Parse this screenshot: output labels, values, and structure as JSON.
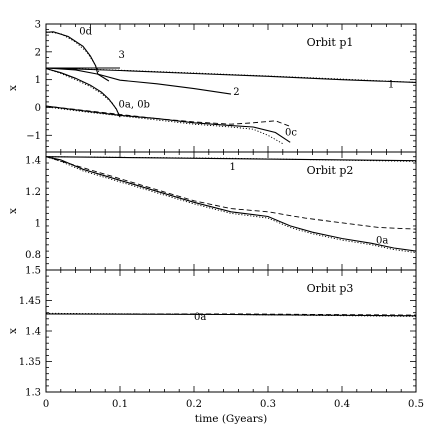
{
  "chart_data": {
    "type": "line",
    "xlabel": "time (Gyears)",
    "x_ticks": [
      "0",
      "0.1",
      "0.2",
      "0.3",
      "0.4",
      "0.5"
    ],
    "xlim": [
      0,
      0.5
    ],
    "panels": [
      {
        "title": "Orbit p1",
        "ylabel": "x",
        "ylim": [
          -1.6,
          3
        ],
        "y_ticks": [
          "−1",
          "0",
          "1",
          "2",
          "3"
        ],
        "y_tick_values": [
          -1,
          0,
          1,
          2,
          3
        ],
        "annotations": [
          {
            "text": "0d",
            "x": 0.045,
            "y": 2.62
          },
          {
            "text": "3",
            "x": 0.098,
            "y": 1.78
          },
          {
            "text": "2",
            "x": 0.253,
            "y": 0.45
          },
          {
            "text": "1",
            "x": 0.462,
            "y": 0.72
          },
          {
            "text": "0a, 0b",
            "x": 0.098,
            "y": 0.0
          },
          {
            "text": "0c",
            "x": 0.323,
            "y": -1.0
          }
        ],
        "series": [
          {
            "style": "solid",
            "points": [
              [
                0,
                1.42
              ],
              [
                0.1,
                1.33
              ],
              [
                0.2,
                1.22
              ],
              [
                0.3,
                1.12
              ],
              [
                0.4,
                1.0
              ],
              [
                0.5,
                0.9
              ]
            ]
          },
          {
            "style": "dotted",
            "points": [
              [
                0,
                1.42
              ],
              [
                0.1,
                1.34
              ],
              [
                0.2,
                1.24
              ],
              [
                0.3,
                1.13
              ],
              [
                0.4,
                1.02
              ],
              [
                0.5,
                0.9
              ]
            ]
          },
          {
            "style": "solid",
            "points": [
              [
                0,
                1.42
              ],
              [
                0.04,
                1.35
              ],
              [
                0.07,
                1.2
              ],
              [
                0.1,
                0.98
              ],
              [
                0.15,
                0.85
              ],
              [
                0.2,
                0.68
              ],
              [
                0.25,
                0.48
              ]
            ]
          },
          {
            "style": "solid",
            "points": [
              [
                0,
                1.42
              ],
              [
                0.1,
                1.42
              ]
            ]
          },
          {
            "style": "solid",
            "points": [
              [
                0,
                2.7
              ],
              [
                0.01,
                2.72
              ],
              [
                0.03,
                2.55
              ],
              [
                0.05,
                2.2
              ],
              [
                0.06,
                1.85
              ],
              [
                0.067,
                1.5
              ],
              [
                0.07,
                1.2
              ],
              [
                0.085,
                0.95
              ]
            ]
          },
          {
            "style": "dotted",
            "points": [
              [
                0,
                2.72
              ],
              [
                0.02,
                2.65
              ],
              [
                0.04,
                2.35
              ],
              [
                0.055,
                2.0
              ],
              [
                0.065,
                1.6
              ],
              [
                0.072,
                1.25
              ]
            ]
          },
          {
            "style": "solid",
            "points": [
              [
                0,
                1.4
              ],
              [
                0.02,
                1.25
              ],
              [
                0.04,
                1.05
              ],
              [
                0.06,
                0.8
              ],
              [
                0.075,
                0.55
              ],
              [
                0.085,
                0.3
              ],
              [
                0.095,
                -0.05
              ],
              [
                0.1,
                -0.35
              ]
            ]
          },
          {
            "style": "dotted",
            "points": [
              [
                0,
                1.4
              ],
              [
                0.02,
                1.22
              ],
              [
                0.04,
                1.0
              ],
              [
                0.06,
                0.75
              ],
              [
                0.075,
                0.5
              ],
              [
                0.09,
                0.15
              ],
              [
                0.1,
                -0.3
              ]
            ]
          },
          {
            "style": "solid",
            "points": [
              [
                0,
                0.05
              ],
              [
                0.03,
                -0.05
              ],
              [
                0.06,
                -0.15
              ],
              [
                0.1,
                -0.28
              ],
              [
                0.15,
                -0.4
              ],
              [
                0.2,
                -0.55
              ],
              [
                0.25,
                -0.65
              ],
              [
                0.28,
                -0.7
              ],
              [
                0.31,
                -0.9
              ],
              [
                0.33,
                -1.25
              ]
            ]
          },
          {
            "style": "dotted",
            "points": [
              [
                0,
                0.02
              ],
              [
                0.03,
                -0.08
              ],
              [
                0.06,
                -0.18
              ],
              [
                0.1,
                -0.3
              ],
              [
                0.15,
                -0.45
              ],
              [
                0.2,
                -0.6
              ],
              [
                0.25,
                -0.7
              ],
              [
                0.28,
                -0.78
              ],
              [
                0.3,
                -1.0
              ],
              [
                0.32,
                -1.3
              ]
            ]
          },
          {
            "style": "dashed",
            "points": [
              [
                0,
                0.05
              ],
              [
                0.05,
                -0.1
              ],
              [
                0.1,
                -0.25
              ],
              [
                0.15,
                -0.4
              ],
              [
                0.2,
                -0.52
              ],
              [
                0.25,
                -0.6
              ],
              [
                0.28,
                -0.55
              ],
              [
                0.31,
                -0.48
              ],
              [
                0.33,
                -0.68
              ]
            ]
          }
        ]
      },
      {
        "title": "Orbit p2",
        "ylabel": "x",
        "ylim": [
          0.7,
          1.45
        ],
        "y_ticks": [
          "0.8",
          "1",
          "1.2",
          "1.4"
        ],
        "y_tick_values": [
          0.8,
          1,
          1.2,
          1.4
        ],
        "annotations": [
          {
            "text": "1",
            "x": 0.248,
            "y": 1.335
          },
          {
            "text": "0a",
            "x": 0.446,
            "y": 0.87
          }
        ],
        "series": [
          {
            "style": "solid",
            "points": [
              [
                0,
                1.42
              ],
              [
                0.5,
                1.395
              ]
            ]
          },
          {
            "style": "dotted",
            "points": [
              [
                0,
                1.42
              ],
              [
                0.25,
                1.41
              ],
              [
                0.5,
                1.39
              ]
            ]
          },
          {
            "style": "solid",
            "points": [
              [
                0,
                1.42
              ],
              [
                0.02,
                1.4
              ],
              [
                0.05,
                1.34
              ],
              [
                0.1,
                1.27
              ],
              [
                0.15,
                1.2
              ],
              [
                0.2,
                1.13
              ],
              [
                0.25,
                1.07
              ],
              [
                0.3,
                1.04
              ],
              [
                0.33,
                0.98
              ],
              [
                0.36,
                0.94
              ],
              [
                0.4,
                0.9
              ],
              [
                0.44,
                0.87
              ],
              [
                0.47,
                0.84
              ],
              [
                0.5,
                0.82
              ]
            ]
          },
          {
            "style": "dotted",
            "points": [
              [
                0,
                1.42
              ],
              [
                0.02,
                1.39
              ],
              [
                0.05,
                1.33
              ],
              [
                0.1,
                1.26
              ],
              [
                0.15,
                1.19
              ],
              [
                0.2,
                1.12
              ],
              [
                0.25,
                1.06
              ],
              [
                0.3,
                1.03
              ],
              [
                0.33,
                0.97
              ],
              [
                0.36,
                0.93
              ],
              [
                0.4,
                0.89
              ],
              [
                0.44,
                0.86
              ],
              [
                0.47,
                0.83
              ],
              [
                0.5,
                0.81
              ]
            ]
          },
          {
            "style": "dashed",
            "points": [
              [
                0,
                1.42
              ],
              [
                0.05,
                1.35
              ],
              [
                0.1,
                1.28
              ],
              [
                0.15,
                1.21
              ],
              [
                0.2,
                1.14
              ],
              [
                0.25,
                1.09
              ],
              [
                0.3,
                1.07
              ],
              [
                0.35,
                1.03
              ],
              [
                0.4,
                1.0
              ],
              [
                0.45,
                0.97
              ],
              [
                0.5,
                0.96
              ]
            ]
          }
        ]
      },
      {
        "title": "Orbit p3",
        "ylabel": "x",
        "ylim": [
          1.3,
          1.5
        ],
        "y_ticks": [
          "1.3",
          "1.35",
          "1.4",
          "1.45",
          "1.5"
        ],
        "y_tick_values": [
          1.3,
          1.35,
          1.4,
          1.45,
          1.5
        ],
        "annotations": [
          {
            "text": "0a",
            "x": 0.2,
            "y": 1.418
          }
        ],
        "series": [
          {
            "style": "solid",
            "points": [
              [
                0,
                1.428
              ],
              [
                0.25,
                1.427
              ],
              [
                0.5,
                1.425
              ]
            ]
          },
          {
            "style": "dotted",
            "points": [
              [
                0,
                1.429
              ],
              [
                0.25,
                1.427
              ],
              [
                0.5,
                1.424
              ]
            ]
          },
          {
            "style": "dashed",
            "points": [
              [
                0,
                1.428
              ],
              [
                0.25,
                1.428
              ],
              [
                0.5,
                1.426
              ]
            ]
          }
        ]
      }
    ]
  }
}
